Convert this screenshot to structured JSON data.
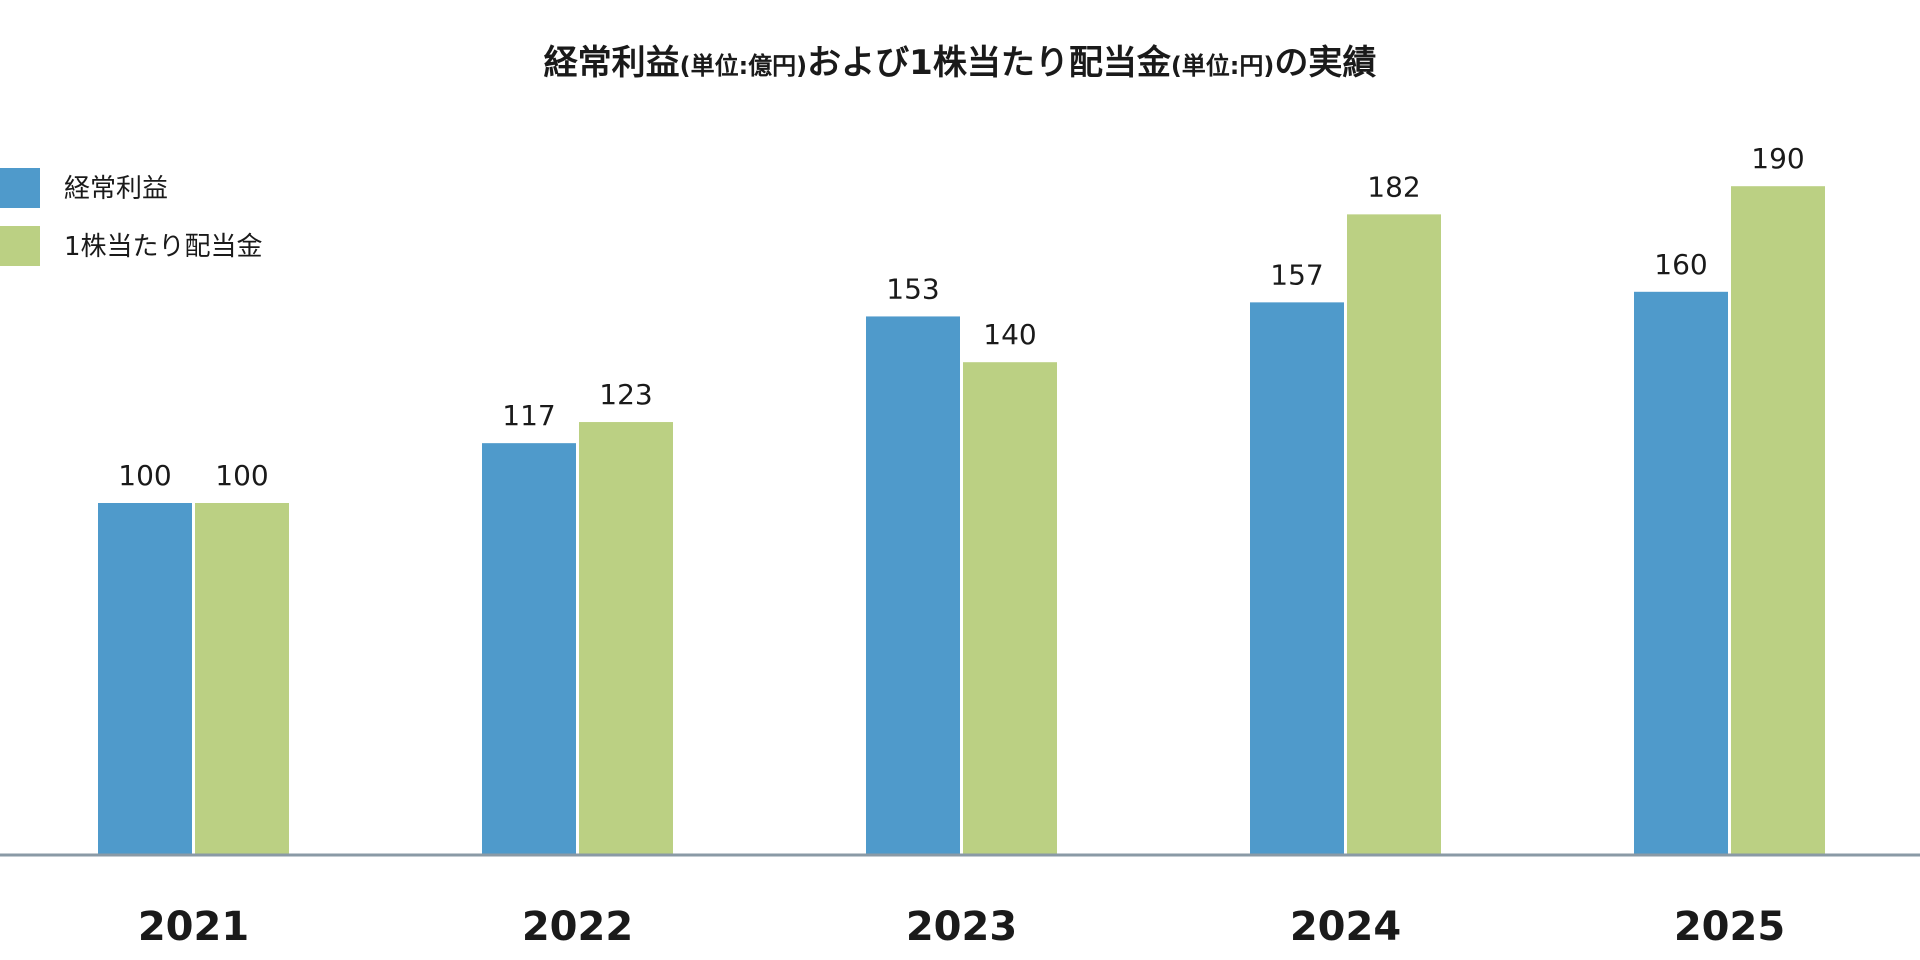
{
  "chart_data": {
    "type": "bar",
    "title_parts": [
      {
        "text": "経常利益",
        "style": "main"
      },
      {
        "text": "(単位:億円)",
        "style": "sub"
      },
      {
        "text": "および1株当たり配当金",
        "style": "main"
      },
      {
        "text": "(単位:円)",
        "style": "sub"
      },
      {
        "text": "の実績",
        "style": "main"
      }
    ],
    "categories": [
      "2021",
      "2022",
      "2023",
      "2024",
      "2025"
    ],
    "series": [
      {
        "name": "経常利益",
        "values": [
          100,
          117,
          153,
          157,
          160
        ],
        "color": "#4f9acb"
      },
      {
        "name": "1株当たり配当金",
        "values": [
          100,
          123,
          140,
          182,
          190
        ],
        "color": "#bbd083"
      }
    ],
    "legend_position": "top-left",
    "grid": false,
    "axis_color": "#8a9aa6"
  }
}
